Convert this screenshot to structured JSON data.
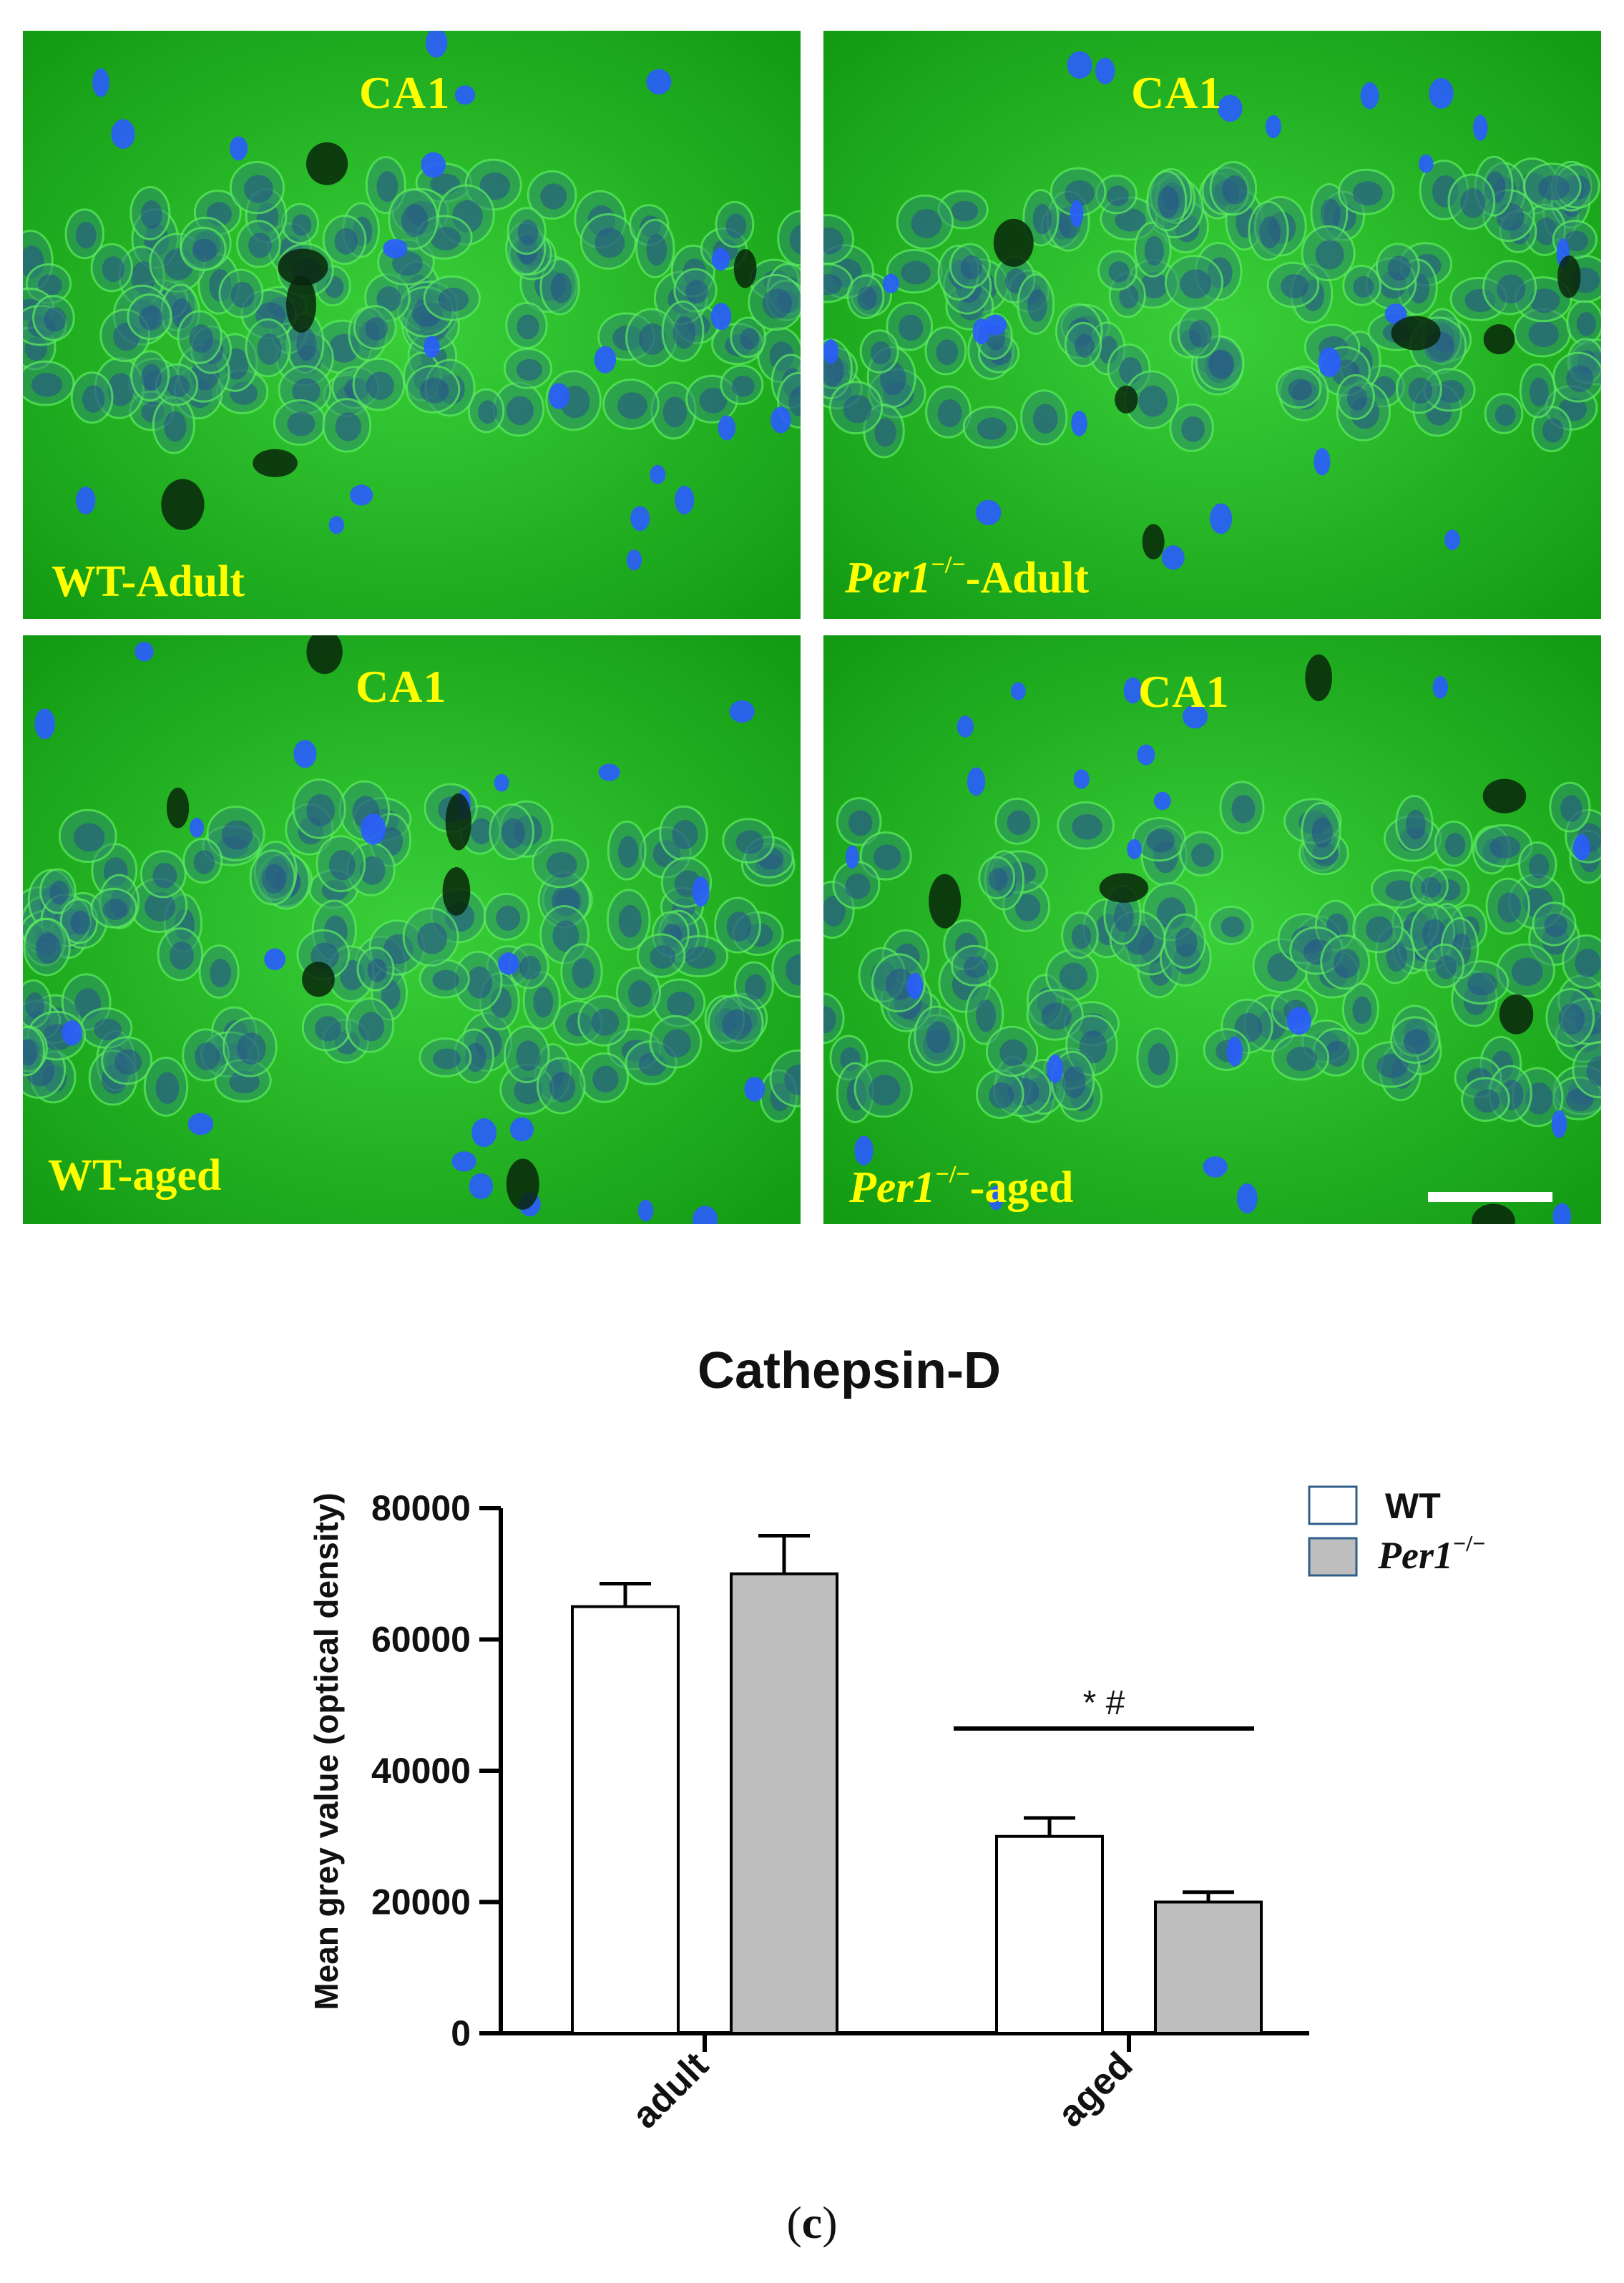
{
  "micrographs": [
    {
      "id": "p1",
      "region": "CA1",
      "condition_genotype": "WT",
      "condition_sep": "-",
      "condition_age": "Adult",
      "genotype_italic": false
    },
    {
      "id": "p2",
      "region": "CA1",
      "condition_genotype": "Per1",
      "condition_sup": "−/−",
      "condition_sep": "-",
      "condition_age": "Adult",
      "genotype_italic": true
    },
    {
      "id": "p3",
      "region": "CA1",
      "condition_genotype": "WT",
      "condition_sep": "-",
      "condition_age": "aged",
      "genotype_italic": false
    },
    {
      "id": "p4",
      "region": "CA1",
      "condition_genotype": "Per1",
      "condition_sup": "−/−",
      "condition_sep": "-",
      "condition_age": "aged",
      "genotype_italic": true
    }
  ],
  "colors": {
    "tissue_green": "#1fb81f",
    "nuclei_blue": "#2a5cff",
    "label_yellow": "#ffff00",
    "bar_wt": "#ffffff",
    "bar_per1": "#bebebe"
  },
  "chart_data": {
    "type": "bar",
    "title": "Cathepsin-D",
    "ylabel": "Mean grey value (optical density)",
    "xlabel": "",
    "categories": [
      "adult",
      "aged"
    ],
    "series": [
      {
        "name": "WT",
        "values": [
          65000,
          30000
        ],
        "errors": [
          3500,
          2800
        ]
      },
      {
        "name": "Per1",
        "name_sup": "−/−",
        "values": [
          70000,
          20000
        ],
        "errors": [
          5800,
          1500
        ]
      }
    ],
    "ylim": [
      0,
      80000
    ],
    "yticks": [
      0,
      20000,
      40000,
      60000,
      80000
    ],
    "significance": {
      "label": "* #",
      "category": "aged"
    },
    "legend_position": "top-right"
  },
  "caption": {
    "open": "(",
    "letter": "c",
    "close": ")"
  }
}
